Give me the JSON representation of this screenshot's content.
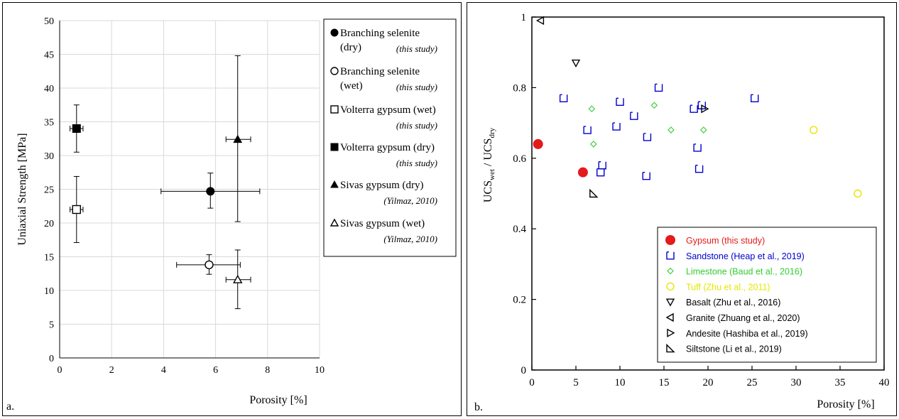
{
  "chart_data": [
    {
      "type": "scatter",
      "panel_label": "a.",
      "xlabel": "Porosity  [%]",
      "ylabel": "Uniaxial Strength [MPa]",
      "xlim": [
        0,
        10
      ],
      "ylim": [
        0,
        50
      ],
      "xticks": [
        0,
        2,
        4,
        6,
        8,
        10
      ],
      "yticks": [
        0,
        5,
        10,
        15,
        20,
        25,
        30,
        35,
        40,
        45,
        50
      ],
      "grid": true,
      "legend_position": "right",
      "series": [
        {
          "name": "Branching selenite (dry)",
          "name_line1": "Branching selenite",
          "name_line2": "(dry)",
          "source": "(this study)",
          "marker": "circle-filled",
          "x": 5.8,
          "y": 24.7,
          "xerr": [
            3.9,
            7.7
          ],
          "yerr": [
            22.2,
            27.4
          ]
        },
        {
          "name": "Branching selenite (wet)",
          "name_line1": "Branching selenite",
          "name_line2": "(wet)",
          "source": "(this study)",
          "marker": "circle-open",
          "x": 5.75,
          "y": 13.8,
          "xerr": [
            4.5,
            6.95
          ],
          "yerr": [
            12.4,
            15.3
          ]
        },
        {
          "name": "Volterra gypsum (wet)",
          "name_line1": "Volterra gypsum (wet)",
          "name_line2": "",
          "source": "(this study)",
          "marker": "square-open",
          "x": 0.65,
          "y": 22.0,
          "xerr": [
            0.4,
            0.9
          ],
          "yerr": [
            17.1,
            26.9
          ]
        },
        {
          "name": "Volterra gypsum (dry)",
          "name_line1": "Volterra gypsum (dry)",
          "name_line2": "",
          "source": "(this study)",
          "marker": "square-filled",
          "x": 0.65,
          "y": 34.0,
          "xerr": [
            0.4,
            0.9
          ],
          "yerr": [
            30.5,
            37.5
          ]
        },
        {
          "name": "Sivas gypsum (dry)",
          "name_line1": "Sivas gypsum (dry)",
          "name_line2": "",
          "source": "(Yilmaz, 2010)",
          "marker": "triangle-filled",
          "x": 6.85,
          "y": 32.4,
          "xerr": [
            6.4,
            7.35
          ],
          "yerr": [
            20.2,
            44.8
          ]
        },
        {
          "name": "Sivas gypsum (wet)",
          "name_line1": "Sivas gypsum (wet)",
          "name_line2": "",
          "source": "(Yilmaz, 2010)",
          "marker": "triangle-open",
          "x": 6.85,
          "y": 11.6,
          "xerr": [
            6.4,
            7.35
          ],
          "yerr": [
            7.3,
            16.0
          ]
        }
      ]
    },
    {
      "type": "scatter",
      "panel_label": "b.",
      "xlabel": "Porosity  [%]",
      "ylabel_main": "UCS",
      "ylabel_sub1": "wet",
      "ylabel_mid": " / UCS",
      "ylabel_sub2": "dry",
      "xlim": [
        0,
        40
      ],
      "ylim": [
        0,
        1
      ],
      "xticks": [
        0,
        5,
        10,
        15,
        20,
        25,
        30,
        35,
        40
      ],
      "yticks": [
        0,
        0.2,
        0.4,
        0.6,
        0.8,
        1
      ],
      "grid": false,
      "legend_position": "bottom-right",
      "series": [
        {
          "name": "Gypsum (this study)",
          "color": "#e41a1c",
          "marker": "circle-filled-large",
          "points": [
            [
              0.7,
              0.64
            ],
            [
              5.8,
              0.56
            ]
          ]
        },
        {
          "name": "Sandstone (Heap et al., 2019)",
          "color": "#0000cc",
          "marker": "sandstone",
          "points": [
            [
              3.6,
              0.77
            ],
            [
              6.3,
              0.68
            ],
            [
              7.8,
              0.56
            ],
            [
              8.0,
              0.58
            ],
            [
              9.6,
              0.69
            ],
            [
              10.0,
              0.76
            ],
            [
              11.6,
              0.72
            ],
            [
              13.0,
              0.55
            ],
            [
              13.1,
              0.66
            ],
            [
              14.4,
              0.8
            ],
            [
              18.4,
              0.74
            ],
            [
              18.8,
              0.63
            ],
            [
              19.0,
              0.57
            ],
            [
              19.3,
              0.75
            ],
            [
              25.3,
              0.77
            ]
          ]
        },
        {
          "name": "Limestone (Baud et al., 2016)",
          "color": "#33cc33",
          "marker": "diamond",
          "points": [
            [
              6.8,
              0.74
            ],
            [
              7.0,
              0.64
            ],
            [
              13.9,
              0.75
            ],
            [
              15.8,
              0.68
            ],
            [
              19.5,
              0.68
            ]
          ]
        },
        {
          "name": "Tuff (Zhu et al., 2011)",
          "color": "#e6e600",
          "marker": "circle-open",
          "points": [
            [
              32.0,
              0.68
            ],
            [
              37.0,
              0.5
            ]
          ]
        },
        {
          "name": "Basalt (Zhu et al., 2016)",
          "color": "#000000",
          "marker": "triangle-down",
          "points": [
            [
              5.0,
              0.87
            ]
          ]
        },
        {
          "name": "Granite (Zhuang et al., 2020)",
          "color": "#000000",
          "marker": "triangle-left",
          "points": [
            [
              1.0,
              0.99
            ]
          ]
        },
        {
          "name": "Andesite (Hashiba et al., 2019)",
          "color": "#000000",
          "marker": "triangle-right",
          "points": [
            [
              19.6,
              0.74
            ]
          ]
        },
        {
          "name": "Siltstone (Li et al., 2019)",
          "color": "#000000",
          "marker": "right-triangle",
          "points": [
            [
              7.0,
              0.5
            ]
          ]
        }
      ]
    }
  ]
}
